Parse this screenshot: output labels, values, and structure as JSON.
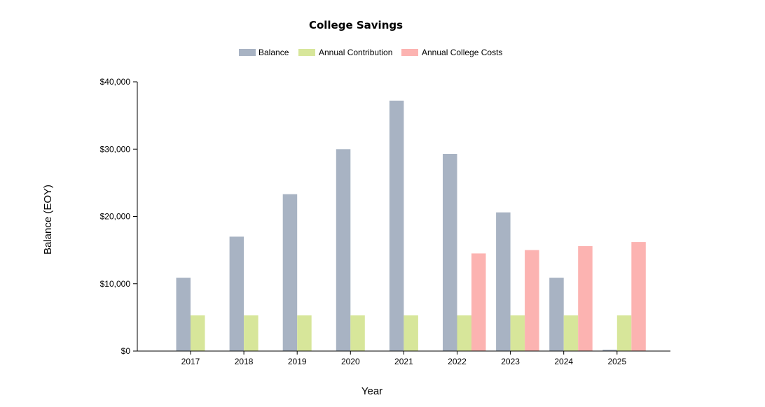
{
  "chart_data": {
    "type": "bar",
    "title": "College Savings",
    "xlabel": "Year",
    "ylabel": "Balance (EOY)",
    "categories": [
      "2017",
      "2018",
      "2019",
      "2020",
      "2021",
      "2022",
      "2023",
      "2024",
      "2025"
    ],
    "series": [
      {
        "name": "Balance",
        "color": "#a8b3c3",
        "values": [
          10900,
          17000,
          23300,
          30000,
          37200,
          29300,
          20600,
          10900,
          200
        ]
      },
      {
        "name": "Annual Contribution",
        "color": "#d7e69a",
        "values": [
          5300,
          5300,
          5300,
          5300,
          5300,
          5300,
          5300,
          5300,
          5300
        ]
      },
      {
        "name": "Annual College Costs",
        "color": "#fcb3b1",
        "values": [
          0,
          0,
          0,
          0,
          0,
          14500,
          15000,
          15600,
          16200
        ]
      }
    ],
    "ylim": [
      0,
      40000
    ],
    "yticks": [
      0,
      10000,
      20000,
      30000,
      40000
    ],
    "ytick_labels": [
      "$0",
      "$10,000",
      "$20,000",
      "$30,000",
      "$40,000"
    ],
    "legend_position": "top-center",
    "grid": false
  }
}
